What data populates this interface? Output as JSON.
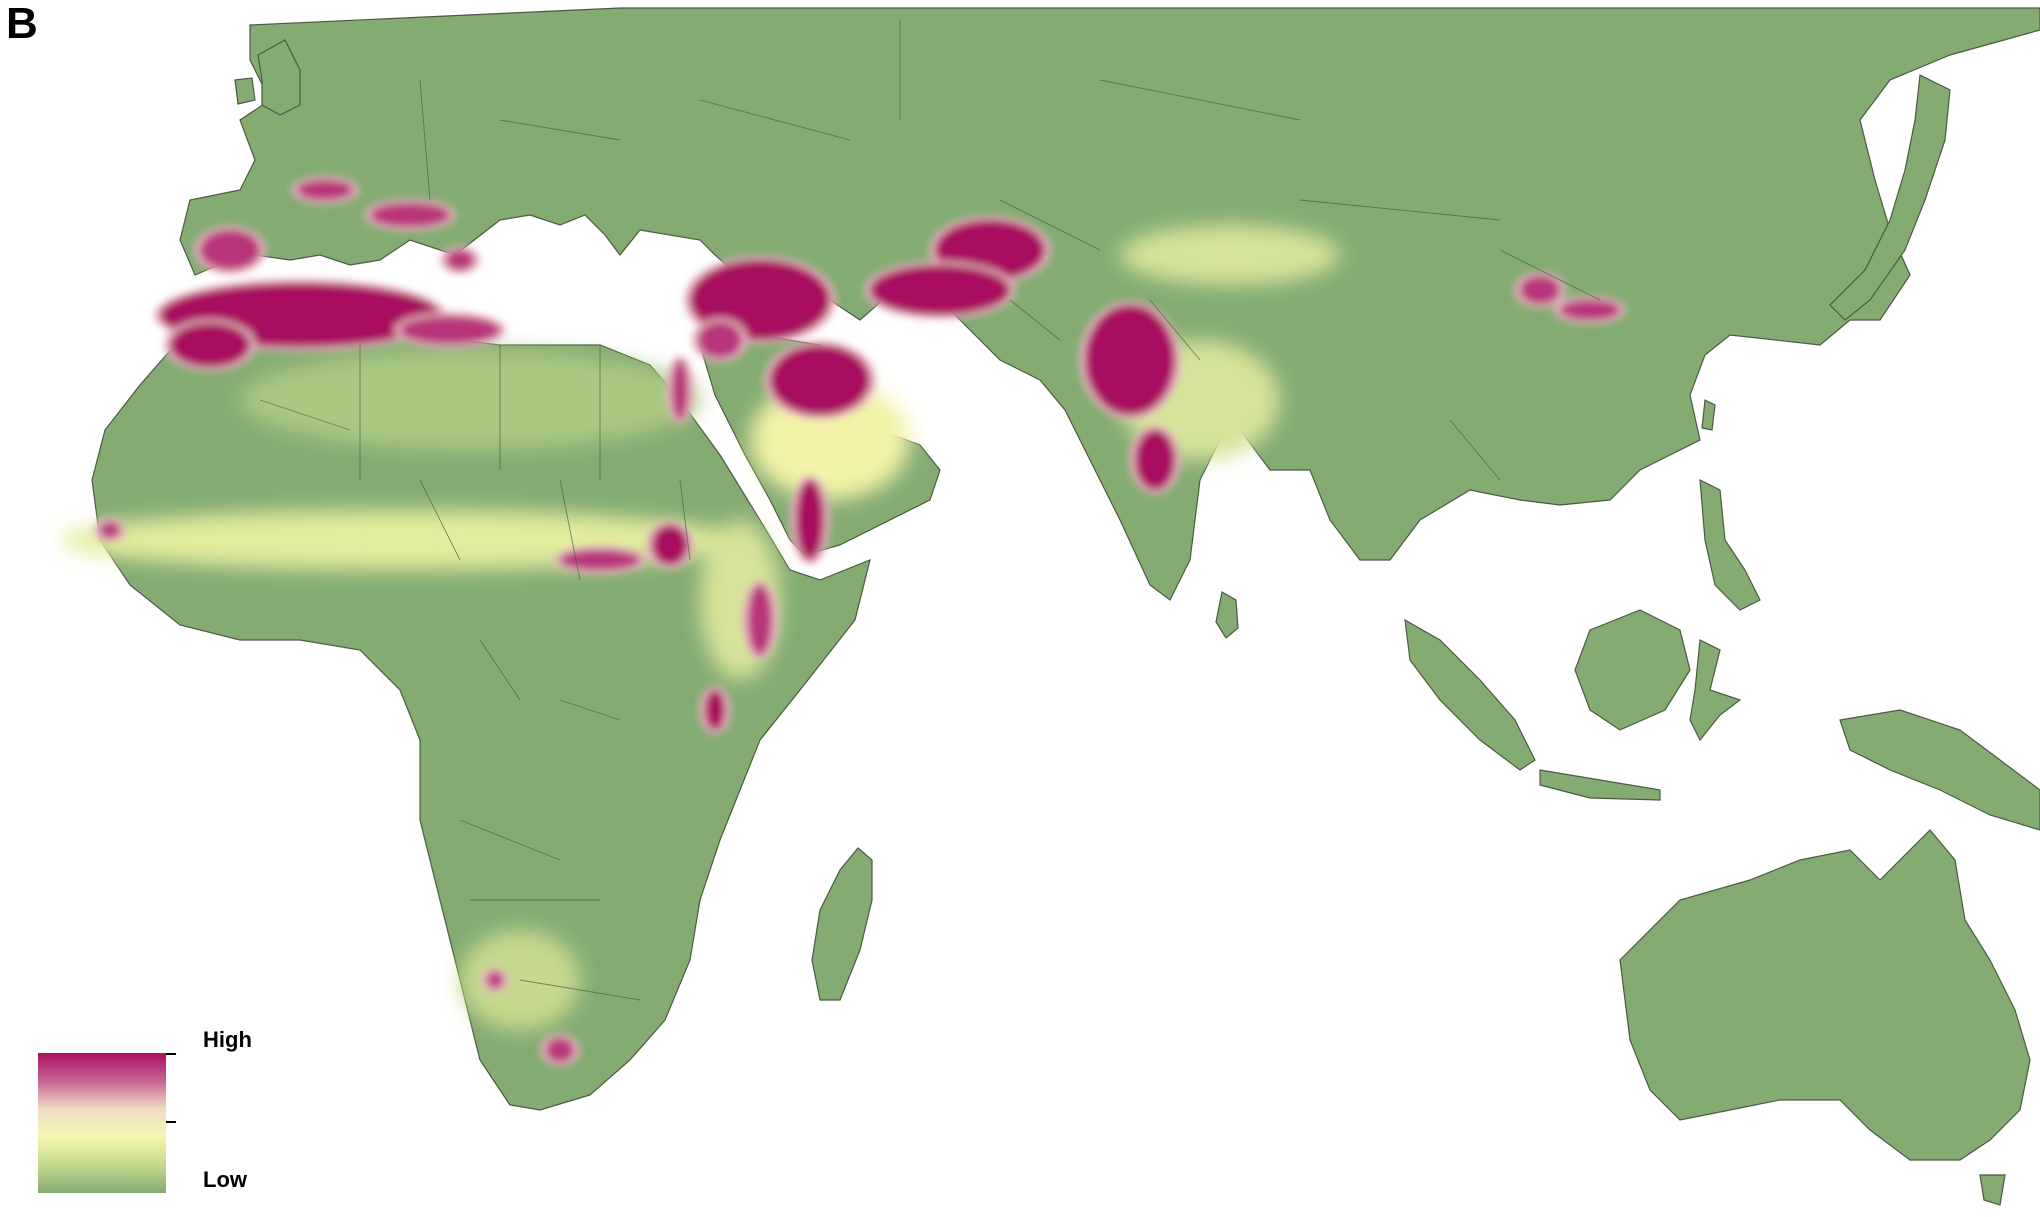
{
  "panel_label": "B",
  "legend": {
    "high_label": "High",
    "low_label": "Low",
    "gradient_stops": [
      "#a8105f",
      "#c86494",
      "#f0dcc4",
      "#f6f6b0",
      "#c2d98c",
      "#83ab72"
    ]
  },
  "colors": {
    "background": "#ffffff",
    "land": "#83ab72",
    "land_light": "#b9d28a",
    "moderate": "#f2f2a8",
    "high": "#a8105f",
    "borders": "#4a5a44"
  },
  "hotspot_colors": [
    "#a8105f",
    "#b8347a",
    "#e7b3c0",
    "#f2f2a8",
    "#c4d98b"
  ]
}
